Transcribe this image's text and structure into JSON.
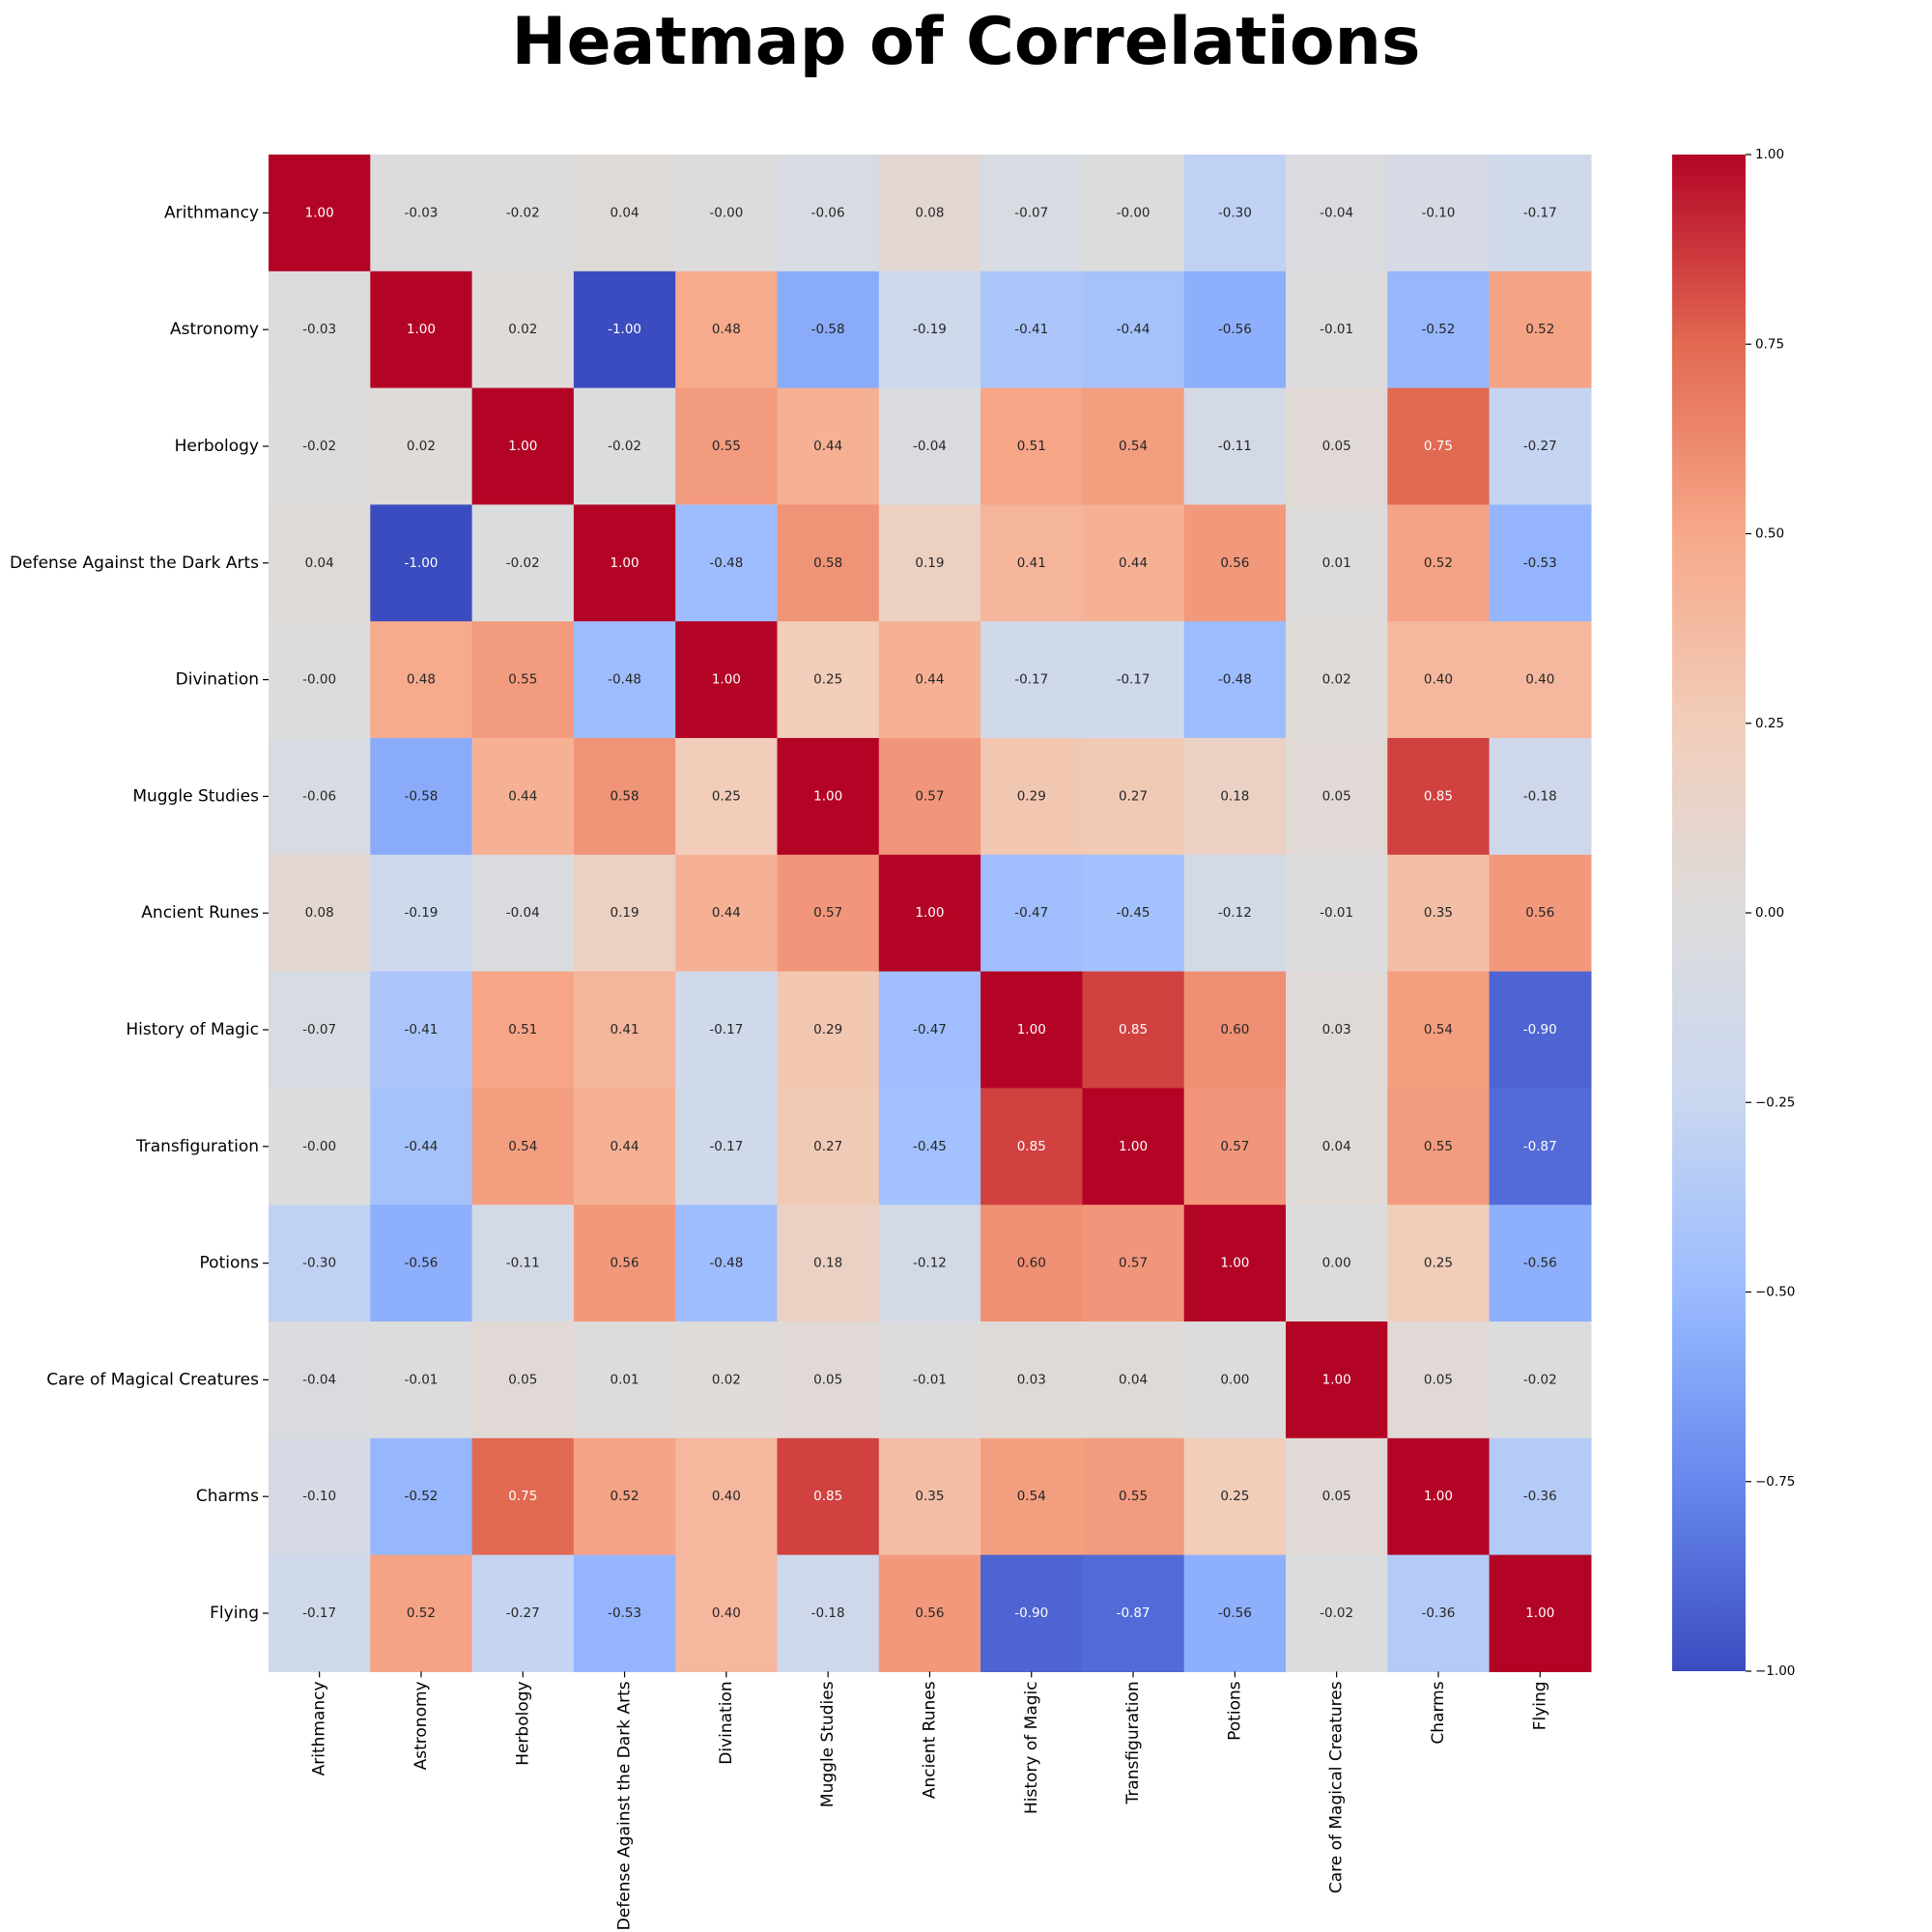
{
  "chart_data": {
    "type": "heatmap",
    "title": "Heatmap of Correlations",
    "xlabel": "",
    "ylabel": "",
    "colormap": "coolwarm",
    "colormap_stops": [
      "#3b4cc0",
      "#6788ee",
      "#9abbff",
      "#c9d7f0",
      "#dddcdc",
      "#f1cdba",
      "#f7a889",
      "#e26952",
      "#b40426"
    ],
    "vmin": -1.0,
    "vmax": 1.0,
    "colorbar_ticks": [
      "1.00",
      "0.75",
      "0.50",
      "0.25",
      "0.00",
      "−0.25",
      "−0.50",
      "−0.75",
      "−1.00"
    ],
    "colorbar_tick_values": [
      1.0,
      0.75,
      0.5,
      0.25,
      0.0,
      -0.25,
      -0.5,
      -0.75,
      -1.0
    ],
    "labels": [
      "Arithmancy",
      "Astronomy",
      "Herbology",
      "Defense Against the Dark Arts",
      "Divination",
      "Muggle Studies",
      "Ancient Runes",
      "History of Magic",
      "Transfiguration",
      "Potions",
      "Care of Magical Creatures",
      "Charms",
      "Flying"
    ],
    "values": [
      [
        1.0,
        -0.03,
        -0.02,
        0.04,
        -0.0,
        -0.06,
        0.08,
        -0.07,
        -0.0,
        -0.3,
        -0.04,
        -0.1,
        -0.17
      ],
      [
        -0.03,
        1.0,
        0.02,
        -1.0,
        0.48,
        -0.58,
        -0.19,
        -0.41,
        -0.44,
        -0.56,
        -0.01,
        -0.52,
        0.52
      ],
      [
        -0.02,
        0.02,
        1.0,
        -0.02,
        0.55,
        0.44,
        -0.04,
        0.51,
        0.54,
        -0.11,
        0.05,
        0.75,
        -0.27
      ],
      [
        0.04,
        -1.0,
        -0.02,
        1.0,
        -0.48,
        0.58,
        0.19,
        0.41,
        0.44,
        0.56,
        0.01,
        0.52,
        -0.53
      ],
      [
        -0.0,
        0.48,
        0.55,
        -0.48,
        1.0,
        0.25,
        0.44,
        -0.17,
        -0.17,
        -0.48,
        0.02,
        0.4,
        0.4
      ],
      [
        -0.06,
        -0.58,
        0.44,
        0.58,
        0.25,
        1.0,
        0.57,
        0.29,
        0.27,
        0.18,
        0.05,
        0.85,
        -0.18
      ],
      [
        0.08,
        -0.19,
        -0.04,
        0.19,
        0.44,
        0.57,
        1.0,
        -0.47,
        -0.45,
        -0.12,
        -0.01,
        0.35,
        0.56
      ],
      [
        -0.07,
        -0.41,
        0.51,
        0.41,
        -0.17,
        0.29,
        -0.47,
        1.0,
        0.85,
        0.6,
        0.03,
        0.54,
        -0.9
      ],
      [
        -0.0,
        -0.44,
        0.54,
        0.44,
        -0.17,
        0.27,
        -0.45,
        0.85,
        1.0,
        0.57,
        0.04,
        0.55,
        -0.87
      ],
      [
        -0.3,
        -0.56,
        -0.11,
        0.56,
        -0.48,
        0.18,
        -0.12,
        0.6,
        0.57,
        1.0,
        0.0,
        0.25,
        -0.56
      ],
      [
        -0.04,
        -0.01,
        0.05,
        0.01,
        0.02,
        0.05,
        -0.01,
        0.03,
        0.04,
        0.0,
        1.0,
        0.05,
        -0.02
      ],
      [
        -0.1,
        -0.52,
        0.75,
        0.52,
        0.4,
        0.85,
        0.35,
        0.54,
        0.55,
        0.25,
        0.05,
        1.0,
        -0.36
      ],
      [
        -0.17,
        0.52,
        -0.27,
        -0.53,
        0.4,
        -0.18,
        0.56,
        -0.9,
        -0.87,
        -0.56,
        -0.02,
        -0.36,
        1.0
      ]
    ],
    "cell_text": [
      [
        "1.00",
        "-0.03",
        "-0.02",
        "0.04",
        "-0.00",
        "-0.06",
        "0.08",
        "-0.07",
        "-0.00",
        "-0.30",
        "-0.04",
        "-0.10",
        "-0.17"
      ],
      [
        "-0.03",
        "1.00",
        "0.02",
        "-1.00",
        "0.48",
        "-0.58",
        "-0.19",
        "-0.41",
        "-0.44",
        "-0.56",
        "-0.01",
        "-0.52",
        "0.52"
      ],
      [
        "-0.02",
        "0.02",
        "1.00",
        "-0.02",
        "0.55",
        "0.44",
        "-0.04",
        "0.51",
        "0.54",
        "-0.11",
        "0.05",
        "0.75",
        "-0.27"
      ],
      [
        "0.04",
        "-1.00",
        "-0.02",
        "1.00",
        "-0.48",
        "0.58",
        "0.19",
        "0.41",
        "0.44",
        "0.56",
        "0.01",
        "0.52",
        "-0.53"
      ],
      [
        "-0.00",
        "0.48",
        "0.55",
        "-0.48",
        "1.00",
        "0.25",
        "0.44",
        "-0.17",
        "-0.17",
        "-0.48",
        "0.02",
        "0.40",
        "0.40"
      ],
      [
        "-0.06",
        "-0.58",
        "0.44",
        "0.58",
        "0.25",
        "1.00",
        "0.57",
        "0.29",
        "0.27",
        "0.18",
        "0.05",
        "0.85",
        "-0.18"
      ],
      [
        "0.08",
        "-0.19",
        "-0.04",
        "0.19",
        "0.44",
        "0.57",
        "1.00",
        "-0.47",
        "-0.45",
        "-0.12",
        "-0.01",
        "0.35",
        "0.56"
      ],
      [
        "-0.07",
        "-0.41",
        "0.51",
        "0.41",
        "-0.17",
        "0.29",
        "-0.47",
        "1.00",
        "0.85",
        "0.60",
        "0.03",
        "0.54",
        "-0.90"
      ],
      [
        "-0.00",
        "-0.44",
        "0.54",
        "0.44",
        "-0.17",
        "0.27",
        "-0.45",
        "0.85",
        "1.00",
        "0.57",
        "0.04",
        "0.55",
        "-0.87"
      ],
      [
        "-0.30",
        "-0.56",
        "-0.11",
        "0.56",
        "-0.48",
        "0.18",
        "-0.12",
        "0.60",
        "0.57",
        "1.00",
        "0.00",
        "0.25",
        "-0.56"
      ],
      [
        "-0.04",
        "-0.01",
        "0.05",
        "0.01",
        "0.02",
        "0.05",
        "-0.01",
        "0.03",
        "0.04",
        "0.00",
        "1.00",
        "0.05",
        "-0.02"
      ],
      [
        "-0.10",
        "-0.52",
        "0.75",
        "0.52",
        "0.40",
        "0.85",
        "0.35",
        "0.54",
        "0.55",
        "0.25",
        "0.05",
        "1.00",
        "-0.36"
      ],
      [
        "-0.17",
        "0.52",
        "-0.27",
        "-0.53",
        "0.40",
        "-0.18",
        "0.56",
        "-0.90",
        "-0.87",
        "-0.56",
        "-0.02",
        "-0.36",
        "1.00"
      ]
    ],
    "legend": "colorbar-right",
    "grid": false
  }
}
